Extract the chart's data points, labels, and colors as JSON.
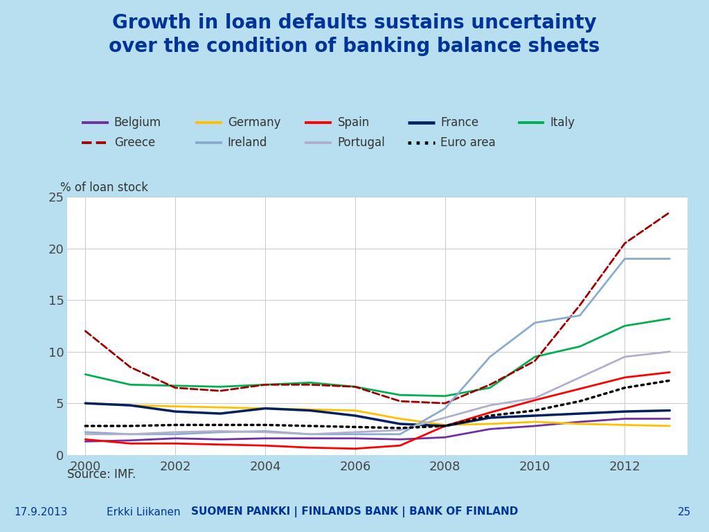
{
  "title": "Growth in loan defaults sustains uncertainty\nover the condition of banking balance sheets",
  "axis_label": "% of loan stock",
  "source": "Source: IMF.",
  "footer_left": "17.9.2013",
  "footer_center": "Erkki Liikanen",
  "footer_right_bold": "SUOMEN PANKKI | FINLANDS BANK | BANK OF FINLAND",
  "footer_page": "25",
  "background_color": "#b8dff0",
  "plot_bg_color": "#ffffff",
  "title_color": "#003399",
  "footer_color": "#003399",
  "years": [
    2000,
    2001,
    2002,
    2003,
    2004,
    2005,
    2006,
    2007,
    2008,
    2009,
    2010,
    2011,
    2012,
    2013
  ],
  "series": {
    "Belgium": {
      "color": "#7030a0",
      "linestyle": "solid",
      "linewidth": 2.0,
      "values": [
        1.3,
        1.4,
        1.6,
        1.5,
        1.6,
        1.6,
        1.6,
        1.5,
        1.7,
        2.5,
        2.8,
        3.2,
        3.5,
        3.5
      ]
    },
    "Germany": {
      "color": "#ffc000",
      "linestyle": "solid",
      "linewidth": 2.0,
      "values": [
        5.0,
        4.8,
        4.7,
        4.6,
        4.5,
        4.4,
        4.3,
        3.5,
        2.9,
        3.0,
        3.2,
        3.0,
        2.9,
        2.8
      ]
    },
    "Spain": {
      "color": "#ff0000",
      "linestyle": "solid",
      "linewidth": 2.0,
      "values": [
        1.5,
        1.1,
        1.1,
        1.0,
        0.9,
        0.7,
        0.6,
        0.9,
        2.8,
        4.1,
        5.3,
        6.4,
        7.5,
        8.0
      ]
    },
    "France": {
      "color": "#002060",
      "linestyle": "solid",
      "linewidth": 2.5,
      "values": [
        5.0,
        4.8,
        4.2,
        4.0,
        4.5,
        4.3,
        3.8,
        3.0,
        2.8,
        3.6,
        3.8,
        4.0,
        4.2,
        4.3
      ]
    },
    "Italy": {
      "color": "#00b050",
      "linestyle": "solid",
      "linewidth": 2.0,
      "values": [
        7.8,
        6.8,
        6.7,
        6.6,
        6.8,
        7.0,
        6.6,
        5.8,
        5.7,
        6.5,
        9.5,
        10.5,
        12.5,
        13.2
      ]
    },
    "Greece": {
      "color": "#a00000",
      "linestyle": "dashed",
      "linewidth": 2.0,
      "values": [
        12.0,
        8.5,
        6.5,
        6.2,
        6.8,
        6.8,
        6.6,
        5.2,
        5.0,
        6.8,
        9.1,
        14.5,
        20.5,
        23.5
      ]
    },
    "Ireland": {
      "color": "#8aabcf",
      "linestyle": "solid",
      "linewidth": 2.0,
      "values": [
        2.2,
        2.0,
        2.0,
        2.2,
        2.3,
        2.0,
        2.0,
        2.0,
        4.5,
        9.5,
        12.8,
        13.5,
        19.0,
        19.0
      ]
    },
    "Portugal": {
      "color": "#b0b0cc",
      "linestyle": "solid",
      "linewidth": 2.0,
      "values": [
        2.0,
        2.0,
        2.2,
        2.3,
        2.2,
        2.0,
        2.2,
        2.4,
        3.6,
        4.8,
        5.5,
        7.5,
        9.5,
        10.0
      ]
    },
    "Euro area": {
      "color": "#000000",
      "linestyle": "dotted",
      "linewidth": 2.5,
      "values": [
        2.8,
        2.8,
        2.9,
        2.9,
        2.9,
        2.8,
        2.7,
        2.6,
        2.8,
        3.8,
        4.3,
        5.2,
        6.5,
        7.2
      ]
    }
  },
  "ylim": [
    0,
    25
  ],
  "yticks": [
    0,
    5,
    10,
    15,
    20,
    25
  ],
  "xlim": [
    1999.6,
    2013.4
  ],
  "xticks": [
    2000,
    2002,
    2004,
    2006,
    2008,
    2010,
    2012
  ],
  "legend_row1": [
    "Belgium",
    "Germany",
    "Spain",
    "France",
    "Italy"
  ],
  "legend_row2": [
    "Greece",
    "Ireland",
    "Portugal",
    "Euro area"
  ]
}
